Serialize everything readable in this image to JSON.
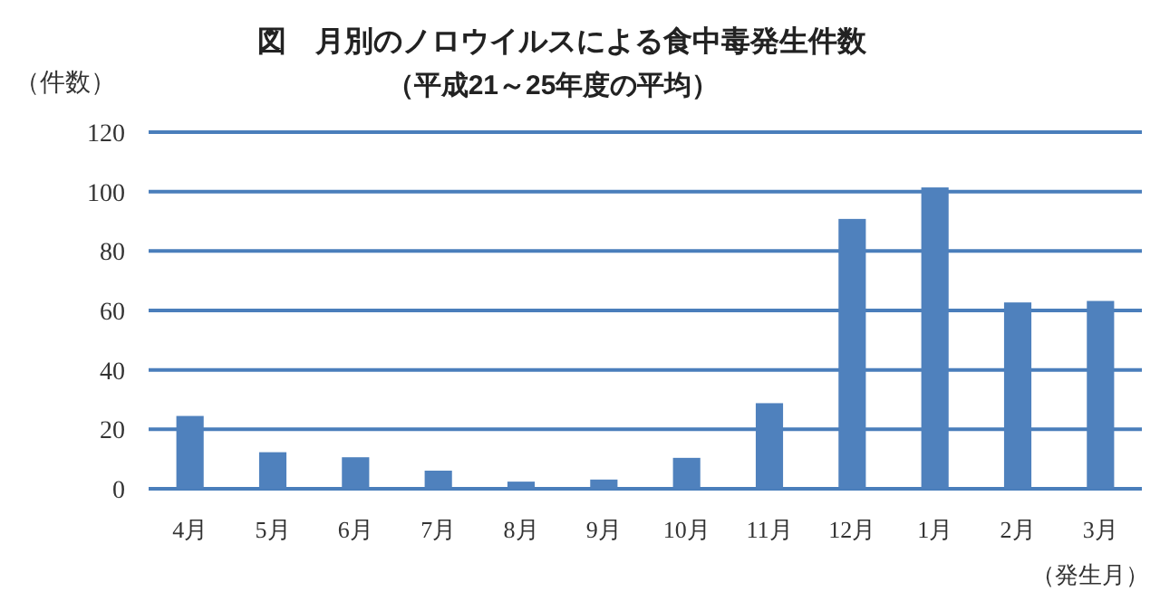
{
  "chart_data": {
    "type": "bar",
    "title": "図　月別のノロウイルスによる食中毒発生件数",
    "subtitle": "（平成21～25年度の平均）",
    "ylabel": "（件数）",
    "xlabel": "（発生月）",
    "categories": [
      "4月",
      "5月",
      "6月",
      "7月",
      "8月",
      "9月",
      "10月",
      "11月",
      "12月",
      "1月",
      "2月",
      "3月"
    ],
    "series": [
      {
        "color": "#4f81bd",
        "values": [
          24.5,
          12.3,
          10.6,
          6.1,
          2.4,
          3.1,
          10.4,
          28.8,
          90.8,
          101.4,
          62.7,
          63.2
        ]
      }
    ],
    "ylim": [
      0,
      120
    ],
    "yticks": [
      0,
      20,
      40,
      60,
      80,
      100,
      120
    ],
    "grid": "y"
  }
}
